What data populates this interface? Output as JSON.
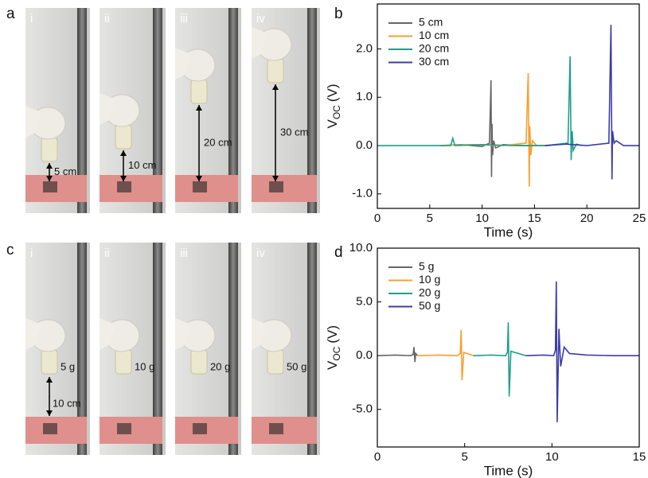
{
  "photo_panels": [
    {
      "label": "a",
      "photos": [
        {
          "numeral": "i",
          "annotation": "5 cm"
        },
        {
          "numeral": "ii",
          "annotation": "10 cm"
        },
        {
          "numeral": "iii",
          "annotation": "20 cm"
        },
        {
          "numeral": "iv",
          "annotation": "30 cm"
        }
      ]
    },
    {
      "label": "c",
      "height_annotation": "10 cm",
      "photos": [
        {
          "numeral": "i",
          "annotation": "5 g"
        },
        {
          "numeral": "ii",
          "annotation": "10 g"
        },
        {
          "numeral": "iii",
          "annotation": "20 g"
        },
        {
          "numeral": "iv",
          "annotation": "50 g"
        }
      ]
    }
  ],
  "chart_data": [
    {
      "type": "line",
      "panel_label": "b",
      "x_label": "Time (s)",
      "y_label": "V",
      "y_label_subscript": "OC",
      "y_label_unit": "(V)",
      "xlim": [
        0,
        25
      ],
      "ylim": [
        -1.3,
        2.93
      ],
      "xticks": [
        0,
        5,
        10,
        15,
        20,
        25
      ],
      "yticks": [
        {
          "value": -1,
          "label": "-1.0"
        },
        {
          "value": 0,
          "label": "0.0"
        },
        {
          "value": 1,
          "label": "1.0"
        },
        {
          "value": 2,
          "label": "2.0"
        }
      ],
      "legend": "upper left",
      "series": [
        {
          "name": "5 cm",
          "color": "#666666",
          "x": [
            6,
            8,
            10,
            10.7,
            10.85,
            10.9,
            10.95,
            11.0,
            11.1,
            11.3,
            12,
            14,
            16
          ],
          "values": [
            0,
            0.02,
            -0.02,
            0.05,
            1.35,
            -0.65,
            0.45,
            -0.2,
            0.1,
            -0.05,
            0.02,
            0,
            0
          ]
        },
        {
          "name": "10 cm",
          "color": "#f5a02f",
          "x": [
            6,
            9,
            12,
            14.2,
            14.4,
            14.5,
            14.55,
            14.65,
            14.8,
            15.2,
            16.5
          ],
          "values": [
            0,
            0.02,
            0,
            0.05,
            1.5,
            -0.85,
            0.4,
            -0.2,
            0.1,
            0,
            0
          ]
        },
        {
          "name": "20 cm",
          "color": "#1f9e8e",
          "x": [
            0,
            3,
            7.0,
            7.2,
            7.4,
            10,
            13,
            16,
            18.2,
            18.4,
            18.5,
            18.6,
            18.7,
            19,
            19.5
          ],
          "values": [
            0,
            0,
            0,
            0.15,
            0,
            0.02,
            0,
            0,
            0.05,
            1.85,
            -0.3,
            0.3,
            -0.1,
            0.03,
            0
          ]
        },
        {
          "name": "30 cm",
          "color": "#3c3ca6",
          "x": [
            16,
            18,
            20,
            22.1,
            22.3,
            22.4,
            22.45,
            22.6,
            22.8,
            23.5,
            25
          ],
          "values": [
            0,
            0.03,
            0,
            0.05,
            2.5,
            -0.7,
            0.3,
            0.05,
            0.1,
            0,
            0
          ]
        }
      ]
    },
    {
      "type": "line",
      "panel_label": "d",
      "x_label": "Time (s)",
      "y_label": "V",
      "y_label_subscript": "OC",
      "y_label_unit": "(V)",
      "xlim": [
        0,
        15
      ],
      "ylim": [
        -8.5,
        10
      ],
      "xticks": [
        0,
        5,
        10,
        15
      ],
      "yticks": [
        {
          "value": -5,
          "label": "-5.0"
        },
        {
          "value": 0,
          "label": "0.0"
        },
        {
          "value": 5,
          "label": "5.0"
        },
        {
          "value": 10,
          "label": "10.0"
        }
      ],
      "legend": "upper left",
      "series": [
        {
          "name": "5 g",
          "color": "#666666",
          "x": [
            0,
            1,
            1.9,
            2.05,
            2.1,
            2.15,
            2.2,
            2.3
          ],
          "values": [
            0,
            0.05,
            0,
            0.1,
            0.8,
            -0.6,
            0.2,
            0
          ]
        },
        {
          "name": "10 g",
          "color": "#f5a02f",
          "x": [
            2.3,
            3.5,
            4.6,
            4.75,
            4.8,
            4.85,
            4.95,
            5.5
          ],
          "values": [
            0,
            0.05,
            0,
            0.2,
            2.4,
            -2.3,
            0.3,
            0
          ]
        },
        {
          "name": "20 g",
          "color": "#1f9e8e",
          "x": [
            5.5,
            6.5,
            7.35,
            7.45,
            7.5,
            7.55,
            7.65,
            8.5
          ],
          "values": [
            0,
            0.05,
            0,
            0.3,
            3.1,
            -3.8,
            0.4,
            0
          ]
        },
        {
          "name": "50 g",
          "color": "#3c3ca6",
          "x": [
            8.5,
            9.5,
            10.1,
            10.2,
            10.25,
            10.3,
            10.4,
            10.5,
            10.7,
            11,
            12,
            13.5,
            15
          ],
          "values": [
            0,
            0.05,
            0,
            0.5,
            6.9,
            -6.2,
            2.5,
            -1.0,
            0.8,
            0.2,
            0.05,
            0,
            0
          ]
        }
      ]
    }
  ]
}
